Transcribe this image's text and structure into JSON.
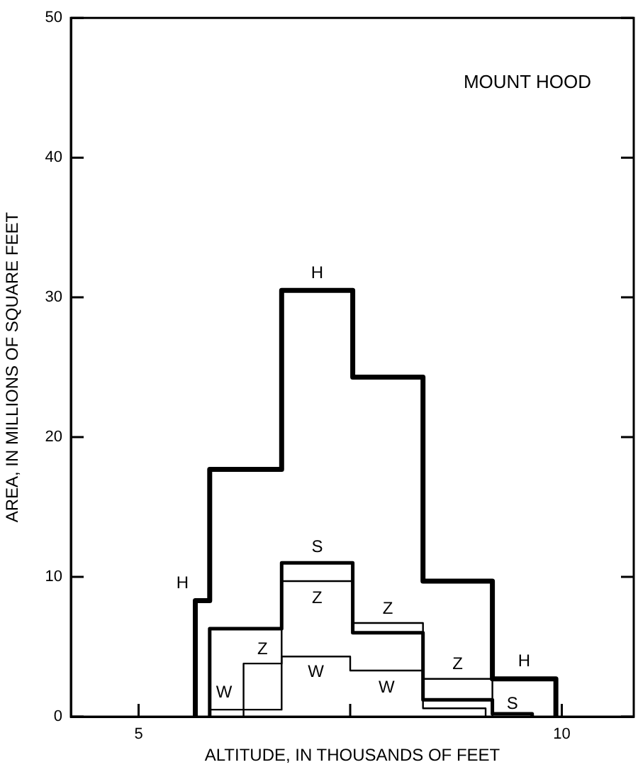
{
  "chart_data": {
    "type": "step",
    "xlabel": "ALTITUDE, IN THOUSANDS OF FEET",
    "ylabel": "AREA, IN MILLIONS OF SQUARE FEET",
    "xlim": [
      4.2,
      10.85
    ],
    "xticks": [
      5,
      {
        "value": 7.5,
        "label": null
      },
      10
    ],
    "ylim": [
      0,
      50
    ],
    "yticks": [
      0,
      10,
      20,
      30,
      40,
      50
    ],
    "grid": false,
    "legend": false,
    "marker": "none",
    "series": [
      {
        "name": "H",
        "color": "#000000",
        "x": [
          5.67,
          5.84,
          6.69,
          7.53,
          8.36,
          9.18,
          9.93,
          9.93
        ],
        "values": [
          0,
          8.3,
          17.7,
          30.5,
          24.3,
          9.7,
          2.7,
          0
        ]
      },
      {
        "name": "S",
        "color": "#000000",
        "x": [
          5.84,
          6.69,
          7.53,
          8.36,
          9.18,
          9.65,
          9.65
        ],
        "values": [
          0,
          6.3,
          11.0,
          6.0,
          1.2,
          0.2,
          0
        ]
      },
      {
        "name": "Z",
        "color": "#000000",
        "x": [
          6.24,
          6.69,
          7.53,
          8.36,
          9.18,
          9.18
        ],
        "values": [
          0,
          3.8,
          9.7,
          6.7,
          2.7,
          0
        ]
      },
      {
        "name": "W",
        "color": "#000000",
        "x": [
          5.84,
          6.69,
          7.5,
          8.36,
          9.1,
          9.1
        ],
        "values": [
          0,
          0.5,
          4.3,
          3.3,
          0.6,
          0
        ]
      }
    ],
    "annotations": [
      "MOUNT HOOD"
    ]
  }
}
